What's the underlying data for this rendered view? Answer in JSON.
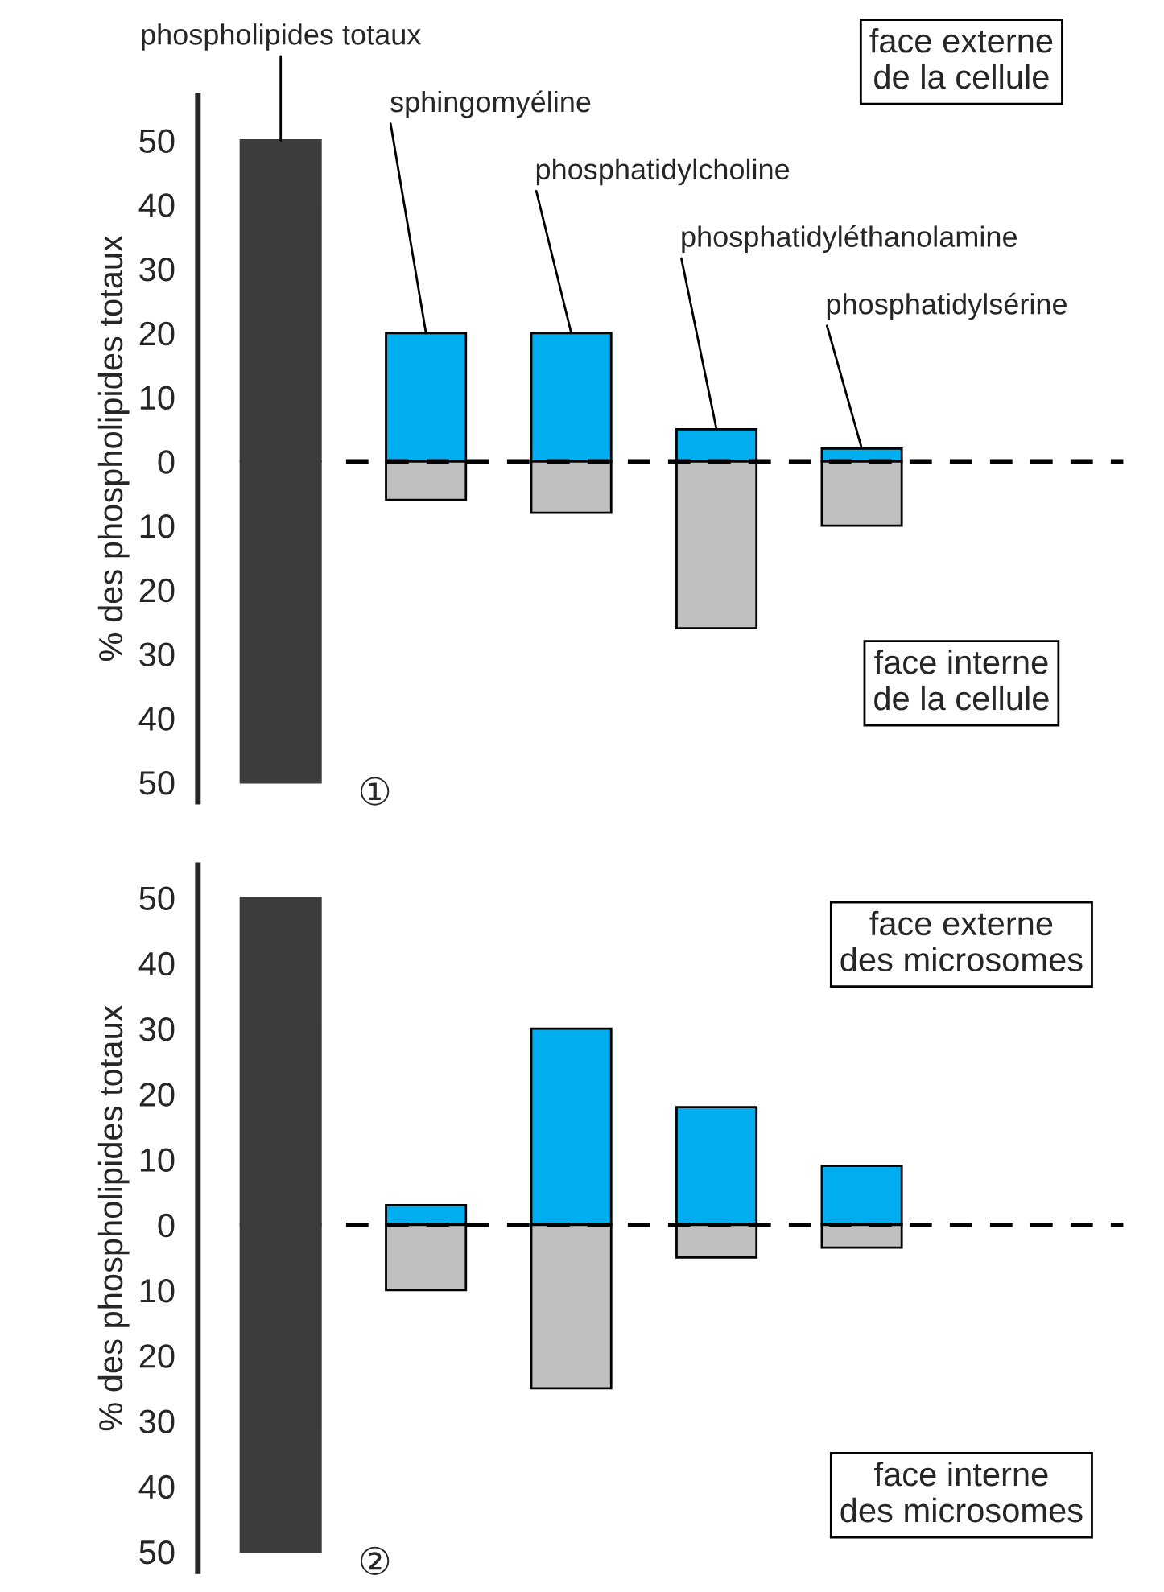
{
  "chart_data": [
    {
      "type": "bar",
      "stacked": true,
      "ylabel": "% des phospholipides totaux",
      "categories": [
        null,
        null,
        null,
        null,
        null
      ],
      "series": [
        {
          "colors": [
            "#3c3c3c",
            "#00aeef",
            "#00aeef",
            "#00aeef",
            "#00aeef"
          ],
          "values": [
            50,
            20,
            20,
            5,
            2
          ]
        },
        {
          "colors": [
            "#3c3c3c",
            "#c0c0c0",
            "#c0c0c0",
            "#c0c0c0",
            "#c0c0c0"
          ],
          "values": [
            -50,
            -6,
            -8,
            -26,
            -10
          ]
        }
      ],
      "ylim": [
        -53,
        57
      ],
      "yticks": [
        {
          "value": -50,
          "label": "50"
        },
        {
          "value": -40,
          "label": "40"
        },
        {
          "value": -30,
          "label": "30"
        },
        {
          "value": -20,
          "label": "20"
        },
        {
          "value": -10,
          "label": "10"
        },
        0,
        10,
        20,
        30,
        40,
        50
      ],
      "ref_lines": [
        {
          "axis": "y",
          "value": 0,
          "line_style": "dashed",
          "color": "#000000"
        }
      ],
      "annotations": [
        "face externe\nde la cellule",
        "face interne\nde la cellule",
        "①",
        "phospholipides totaux",
        "sphingomyéline",
        "phosphatidylcholine",
        "phosphatidyléthanolamine",
        "phosphatidylsérine"
      ],
      "grid": false,
      "legend": false
    },
    {
      "type": "bar",
      "stacked": true,
      "ylabel": "% des phospholipides totaux",
      "categories": [
        null,
        null,
        null,
        null,
        null
      ],
      "series": [
        {
          "colors": [
            "#3c3c3c",
            "#00aeef",
            "#00aeef",
            "#00aeef",
            "#00aeef"
          ],
          "values": [
            50,
            3,
            30,
            18,
            9
          ]
        },
        {
          "colors": [
            "#3c3c3c",
            "#c0c0c0",
            "#c0c0c0",
            "#c0c0c0",
            "#c0c0c0"
          ],
          "values": [
            -50,
            -10,
            -25,
            -5,
            -3.5
          ]
        }
      ],
      "ylim": [
        -53,
        55
      ],
      "yticks": [
        {
          "value": -50,
          "label": "50"
        },
        {
          "value": -40,
          "label": "40"
        },
        {
          "value": -30,
          "label": "30"
        },
        {
          "value": -20,
          "label": "20"
        },
        {
          "value": -10,
          "label": "10"
        },
        0,
        10,
        20,
        30,
        40,
        50
      ],
      "ref_lines": [
        {
          "axis": "y",
          "value": 0,
          "line_style": "dashed",
          "color": "#000000"
        }
      ],
      "annotations": [
        "face externe\ndes microsomes",
        "face interne\ndes microsomes",
        "②"
      ],
      "grid": false,
      "legend": false
    }
  ]
}
